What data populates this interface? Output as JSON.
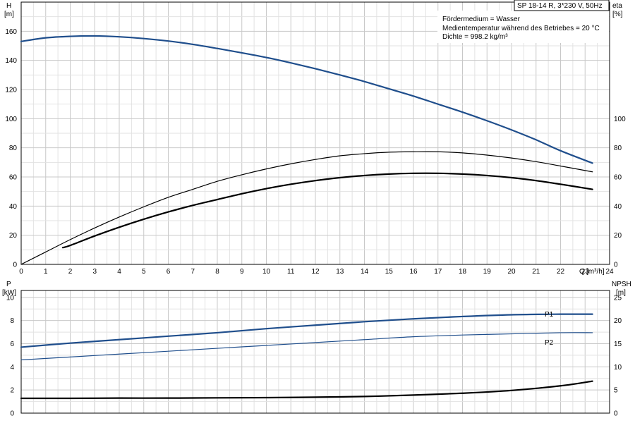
{
  "header": {
    "pump": "SP 18-14 R, 3*230 V, 50Hz",
    "info": [
      "Fördermedium = Wasser",
      "Medientemperatur während des Betriebes = 20 °C",
      "Dichte = 998.2 kg/m³"
    ]
  },
  "chart_data": [
    {
      "type": "line",
      "name": "head-efficiency",
      "x_label": "Q",
      "x_unit": "[m³/h]",
      "x_range": [
        0,
        24
      ],
      "x_ticks": [
        0,
        1,
        2,
        3,
        4,
        5,
        6,
        7,
        8,
        9,
        10,
        11,
        12,
        13,
        14,
        15,
        16,
        17,
        18,
        19,
        20,
        21,
        22,
        23,
        24
      ],
      "y_left": {
        "label": "H",
        "unit": "[m]",
        "range": [
          0,
          180
        ],
        "ticks": [
          0,
          20,
          40,
          60,
          80,
          100,
          120,
          140,
          160
        ]
      },
      "y_right": {
        "label": "eta",
        "unit": "[%]",
        "range": [
          0,
          180
        ],
        "ticks": [
          0,
          20,
          40,
          60,
          80,
          100
        ]
      },
      "grid": true,
      "series": [
        {
          "key": "H",
          "color": "#1f4e8c",
          "width": 2.2,
          "axis": "left",
          "x": [
            0,
            1,
            2,
            3,
            4,
            5,
            6,
            7,
            8,
            9,
            10,
            11,
            12,
            13,
            14,
            15,
            16,
            17,
            18,
            19,
            20,
            21,
            22,
            23.3
          ],
          "y": [
            153,
            155.5,
            156.5,
            156.8,
            156.2,
            155.0,
            153.3,
            151.0,
            148.2,
            145.2,
            142.0,
            138.3,
            134.3,
            130.0,
            125.5,
            120.5,
            115.5,
            110.0,
            104.5,
            98.6,
            92.3,
            85.5,
            78.0,
            69.5
          ]
        },
        {
          "key": "eta_total",
          "color": "#000000",
          "width": 1.2,
          "axis": "right",
          "x": [
            0,
            1,
            2,
            3,
            4,
            5,
            6,
            7,
            8,
            9,
            10,
            11,
            12,
            13,
            14,
            15,
            16,
            17,
            18,
            19,
            20,
            21,
            22,
            23.3
          ],
          "y": [
            0,
            8.5,
            17,
            25,
            32.5,
            39.5,
            46,
            51.5,
            57,
            61.5,
            65.5,
            69,
            72,
            74.5,
            76,
            77,
            77.3,
            77.3,
            76.5,
            75,
            73,
            70.5,
            67.5,
            63.5
          ]
        },
        {
          "key": "eta_pump",
          "color": "#000000",
          "width": 2.2,
          "axis": "right",
          "x": [
            1.7,
            2,
            3,
            4,
            5,
            6,
            7,
            8,
            9,
            10,
            11,
            12,
            13,
            14,
            15,
            16,
            17,
            18,
            19,
            20,
            21,
            22,
            23.3
          ],
          "y": [
            11.5,
            13,
            19.5,
            25.5,
            31,
            36,
            40.5,
            44.5,
            48.5,
            52,
            55,
            57.5,
            59.5,
            61,
            62,
            62.5,
            62.5,
            62,
            61,
            59.5,
            57.5,
            55,
            51.5
          ]
        }
      ]
    },
    {
      "type": "line",
      "name": "power-npsh",
      "x_range": [
        0,
        24
      ],
      "y_left": {
        "label": "P",
        "unit": "[kW]",
        "range": [
          0,
          10.6
        ],
        "ticks": [
          0,
          2,
          4,
          6,
          8,
          10
        ]
      },
      "y_right": {
        "label": "NPSH",
        "unit": "[m]",
        "range": [
          0,
          26.5
        ],
        "ticks": [
          0,
          5,
          10,
          15,
          20,
          25
        ]
      },
      "grid": true,
      "series": [
        {
          "key": "P1",
          "name": "P1",
          "color": "#1f4e8c",
          "width": 2.2,
          "axis": "left",
          "x": [
            0,
            2,
            4,
            6,
            8,
            10,
            12,
            14,
            16,
            18,
            20,
            22,
            23.3
          ],
          "y": [
            5.7,
            6.05,
            6.35,
            6.65,
            6.95,
            7.3,
            7.6,
            7.9,
            8.15,
            8.35,
            8.5,
            8.55,
            8.55
          ]
        },
        {
          "key": "P2",
          "name": "P2",
          "color": "#1f4e8c",
          "width": 1.2,
          "axis": "left",
          "x": [
            0,
            2,
            4,
            6,
            8,
            10,
            12,
            14,
            16,
            18,
            20,
            22,
            23.3
          ],
          "y": [
            4.6,
            4.85,
            5.1,
            5.35,
            5.6,
            5.85,
            6.1,
            6.35,
            6.6,
            6.75,
            6.85,
            6.95,
            6.95
          ]
        },
        {
          "key": "NPSH",
          "color": "#000000",
          "width": 2.2,
          "axis": "right",
          "x": [
            0,
            2,
            4,
            6,
            8,
            10,
            12,
            14,
            16,
            18,
            20,
            22,
            23.3
          ],
          "y": [
            3.2,
            3.2,
            3.25,
            3.25,
            3.3,
            3.35,
            3.45,
            3.6,
            3.9,
            4.3,
            4.9,
            5.9,
            6.9
          ]
        }
      ]
    }
  ]
}
